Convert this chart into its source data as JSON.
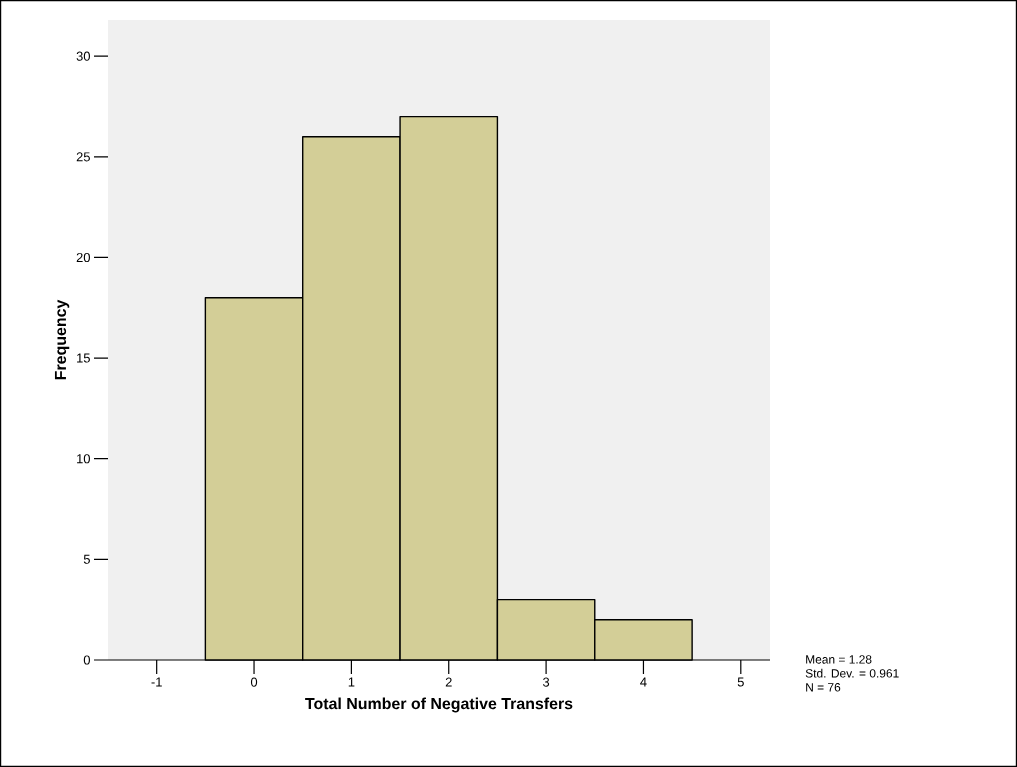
{
  "chart_data": {
    "type": "histogram",
    "xlabel": "Total Number of Negative Transfers",
    "ylabel": "Frequency",
    "bins": [
      -0.5,
      0.5,
      1.5,
      2.5,
      3.5,
      4.5
    ],
    "values": [
      18,
      26,
      27,
      3,
      2
    ],
    "color": "#d3ce97",
    "xlim": [
      -1.5,
      5.3
    ],
    "ylim": [
      0,
      31.8
    ],
    "xticks": [
      -1,
      0,
      1,
      2,
      3,
      4,
      5
    ],
    "yticks": [
      0,
      5,
      10,
      15,
      20,
      25,
      30
    ],
    "grid": false,
    "annotations": [
      "Mean = 1.28",
      "Std. Dev. = 0.961",
      "N = 76"
    ]
  }
}
